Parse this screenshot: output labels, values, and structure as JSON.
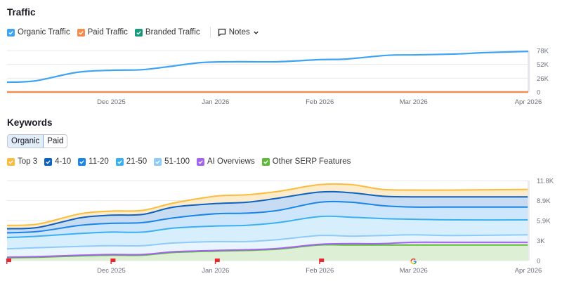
{
  "traffic": {
    "title": "Traffic",
    "legend": [
      {
        "label": "Organic Traffic",
        "color": "#3ea3f2"
      },
      {
        "label": "Paid Traffic",
        "color": "#f58b4c"
      },
      {
        "label": "Branded Traffic",
        "color": "#179b7a"
      }
    ],
    "notes_label": "Notes"
  },
  "keywords": {
    "title": "Keywords",
    "tabs": [
      {
        "label": "Organic",
        "active": true
      },
      {
        "label": "Paid",
        "active": false
      }
    ],
    "legend": [
      {
        "label": "Top 3",
        "color": "#fbbc3c"
      },
      {
        "label": "4-10",
        "color": "#0c61c2"
      },
      {
        "label": "11-20",
        "color": "#1a85e6"
      },
      {
        "label": "21-50",
        "color": "#3ab0f2"
      },
      {
        "label": "51-100",
        "color": "#8ecbfa"
      },
      {
        "label": "AI Overviews",
        "color": "#a363f0"
      },
      {
        "label": "Other SERP Features",
        "color": "#5fba3b"
      }
    ]
  },
  "chart_data": [
    {
      "type": "line",
      "title": "Traffic",
      "x": [
        0,
        0.27,
        0.67,
        1.0,
        1.3,
        1.6,
        1.87,
        2.2,
        2.6,
        3.0,
        3.25,
        3.64,
        3.92,
        4.3,
        4.57,
        5.0
      ],
      "x_ticks": [
        "Dec 2025",
        "Jan 2026",
        "Feb 2026",
        "Mar 2026",
        "Apr 2026"
      ],
      "x_tick_positions": [
        1,
        2,
        3,
        3.9,
        5
      ],
      "y_ticks": [
        "78K",
        "52K",
        "26K",
        "0"
      ],
      "ylim": [
        0,
        78000
      ],
      "series": [
        {
          "name": "Organic Traffic",
          "color": "#3ea3f2",
          "values": [
            18500,
            21000,
            37000,
            41000,
            42000,
            49000,
            55500,
            57000,
            57000,
            61000,
            62000,
            69000,
            70000,
            71500,
            74000,
            76500
          ]
        },
        {
          "name": "Paid Traffic",
          "color": "#f58b4c",
          "values": [
            0,
            0,
            0,
            0,
            0,
            0,
            0,
            0,
            0,
            0,
            0,
            0,
            0,
            0,
            0,
            0
          ]
        },
        {
          "name": "Branded Traffic",
          "color": "#179b7a",
          "values": [
            0,
            0,
            0,
            0,
            0,
            0,
            0,
            0,
            0,
            0,
            0,
            0,
            0,
            0,
            0,
            0
          ]
        }
      ]
    },
    {
      "type": "area",
      "title": "Keywords",
      "stacked": true,
      "x": [
        0,
        0.3,
        0.7,
        1.0,
        1.3,
        1.6,
        2.0,
        2.3,
        2.6,
        3.0,
        3.3,
        3.6,
        3.9,
        4.3,
        5.0
      ],
      "x_ticks": [
        "Dec 2025",
        "Jan 2026",
        "Feb 2026",
        "Mar 2026",
        "Apr 2026"
      ],
      "x_tick_positions": [
        1,
        2,
        3,
        3.9,
        5
      ],
      "y_ticks": [
        "11.8K",
        "8.9K",
        "5.9K",
        "3K",
        "0"
      ],
      "ylim": [
        0,
        11800
      ],
      "cumulative_series": [
        {
          "name": "Top 3",
          "color": "#fbbc3c",
          "fill": "#fdeccb",
          "values": [
            5200,
            5400,
            6900,
            7300,
            7400,
            8500,
            9500,
            9700,
            10200,
            11200,
            11200,
            10500,
            10400,
            10400,
            10500
          ]
        },
        {
          "name": "4-10",
          "color": "#0c61c2",
          "fill": "#c7dcf2",
          "values": [
            4700,
            4900,
            6300,
            6700,
            6800,
            7900,
            8400,
            8600,
            9200,
            10100,
            10000,
            9500,
            9400,
            9400,
            9400
          ]
        },
        {
          "name": "11-20",
          "color": "#1a85e6",
          "fill": "#cde6fb",
          "values": [
            4100,
            4300,
            5200,
            5500,
            5600,
            6300,
            6900,
            7000,
            7400,
            8600,
            8600,
            8100,
            7900,
            7900,
            7900
          ]
        },
        {
          "name": "21-50",
          "color": "#3ab0f2",
          "fill": "#d7effd",
          "values": [
            3400,
            3600,
            4000,
            4200,
            4200,
            4800,
            5100,
            5200,
            5600,
            6500,
            6400,
            6200,
            6100,
            6000,
            6000
          ]
        },
        {
          "name": "51-100",
          "color": "#8ecbfa",
          "fill": "#e8f4fe",
          "values": [
            1740,
            1900,
            2100,
            2200,
            2200,
            2600,
            2800,
            2800,
            3100,
            3700,
            3600,
            3700,
            3800,
            3700,
            3800
          ]
        },
        {
          "name": "AI Overviews",
          "color": "#a363f0",
          "fill": "#efe3fc",
          "values": [
            510,
            600,
            800,
            900,
            900,
            1300,
            1500,
            1600,
            1800,
            2400,
            2500,
            2500,
            2700,
            2700,
            2700
          ]
        },
        {
          "name": "Other SERP Features",
          "color": "#5fba3b",
          "fill": "#ddf0d6",
          "values": [
            410,
            500,
            700,
            800,
            800,
            1200,
            1400,
            1500,
            1700,
            2300,
            2300,
            2300,
            2300,
            2300,
            2300
          ]
        }
      ],
      "markers": [
        {
          "type": "flag",
          "x": 0
        },
        {
          "type": "flag",
          "x": 1
        },
        {
          "type": "flag",
          "x": 2
        },
        {
          "type": "flag",
          "x": 3
        },
        {
          "type": "google",
          "x": 3.9
        }
      ]
    }
  ]
}
